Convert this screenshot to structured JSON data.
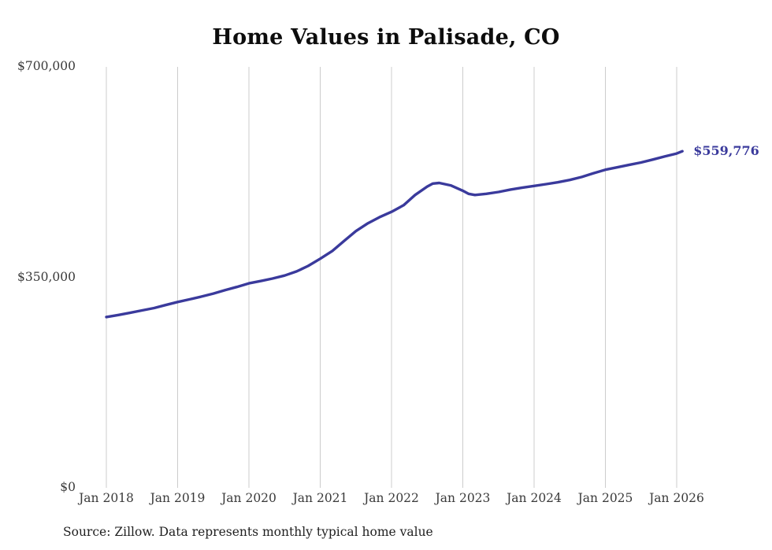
{
  "chart_data": {
    "type": "line",
    "title": "Home Values in Palisade, CO",
    "source": "Source: Zillow. Data represents monthly typical home value",
    "end_label": "$559,776",
    "ylim": [
      0,
      700000
    ],
    "grid": "vertical-only",
    "line_color": "#3a3a9c",
    "gridline_color": "#cccccc",
    "y_ticks": [
      {
        "value": 700000,
        "label": "$700,000"
      },
      {
        "value": 350000,
        "label": "$350,000"
      },
      {
        "value": 0,
        "label": "$0"
      }
    ],
    "x_tick_years": [
      2018,
      2019,
      2020,
      2021,
      2022,
      2023,
      2024,
      2025,
      2026
    ],
    "x_tick_labels": [
      "Jan 2018",
      "Jan 2019",
      "Jan 2020",
      "Jan 2021",
      "Jan 2022",
      "Jan 2023",
      "Jan 2024",
      "Jan 2025",
      "Jan 2026"
    ],
    "series": [
      {
        "name": "Monthly typical home value",
        "color": "#3a3a9c",
        "points": [
          [
            2018.0,
            284000
          ],
          [
            2018.17,
            287500
          ],
          [
            2018.33,
            291000
          ],
          [
            2018.5,
            295000
          ],
          [
            2018.67,
            299000
          ],
          [
            2018.83,
            304000
          ],
          [
            2019.0,
            309000
          ],
          [
            2019.17,
            313500
          ],
          [
            2019.33,
            318000
          ],
          [
            2019.5,
            323000
          ],
          [
            2019.67,
            329000
          ],
          [
            2019.83,
            334000
          ],
          [
            2020.0,
            340000
          ],
          [
            2020.17,
            344000
          ],
          [
            2020.33,
            348000
          ],
          [
            2020.5,
            353000
          ],
          [
            2020.67,
            360000
          ],
          [
            2020.83,
            369000
          ],
          [
            2021.0,
            381000
          ],
          [
            2021.17,
            394000
          ],
          [
            2021.33,
            410000
          ],
          [
            2021.5,
            427000
          ],
          [
            2021.67,
            440000
          ],
          [
            2021.83,
            450000
          ],
          [
            2022.0,
            459000
          ],
          [
            2022.17,
            470000
          ],
          [
            2022.33,
            487000
          ],
          [
            2022.5,
            501000
          ],
          [
            2022.58,
            506000
          ],
          [
            2022.67,
            507000
          ],
          [
            2022.83,
            503000
          ],
          [
            2023.0,
            494000
          ],
          [
            2023.08,
            489000
          ],
          [
            2023.17,
            487000
          ],
          [
            2023.33,
            489000
          ],
          [
            2023.5,
            492000
          ],
          [
            2023.67,
            496000
          ],
          [
            2023.83,
            499000
          ],
          [
            2024.0,
            502000
          ],
          [
            2024.17,
            505000
          ],
          [
            2024.33,
            508000
          ],
          [
            2024.5,
            512000
          ],
          [
            2024.67,
            517000
          ],
          [
            2024.83,
            523000
          ],
          [
            2025.0,
            529000
          ],
          [
            2025.17,
            533000
          ],
          [
            2025.33,
            537000
          ],
          [
            2025.5,
            541000
          ],
          [
            2025.67,
            546000
          ],
          [
            2025.83,
            551000
          ],
          [
            2026.0,
            556000
          ],
          [
            2026.08,
            559776
          ]
        ]
      }
    ]
  }
}
